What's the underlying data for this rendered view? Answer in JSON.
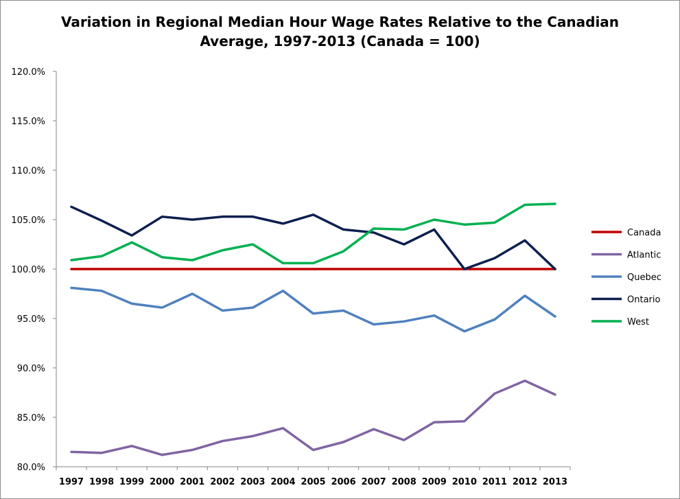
{
  "chart_data": {
    "type": "line",
    "title_line1": "Variation in Regional Median Hour Wage Rates Relative to the Canadian",
    "title_line2": "Average, 1997-2013 (Canada = 100)",
    "xlabel": "",
    "ylabel": "",
    "ylim": [
      80,
      120
    ],
    "ytick_step": 5,
    "grid": false,
    "legend_position": "right",
    "x": [
      "1997",
      "1998",
      "1999",
      "2000",
      "2001",
      "2002",
      "2003",
      "2004",
      "2005",
      "2006",
      "2007",
      "2008",
      "2009",
      "2010",
      "2011",
      "2012",
      "2013"
    ],
    "series": [
      {
        "name": "Canada",
        "color": "#c00000",
        "values": [
          100,
          100,
          100,
          100,
          100,
          100,
          100,
          100,
          100,
          100,
          100,
          100,
          100,
          100,
          100,
          100,
          100
        ]
      },
      {
        "name": "Atlantic",
        "color": "#8064a2",
        "values": [
          81.5,
          81.4,
          82.1,
          81.2,
          81.7,
          82.6,
          83.1,
          83.9,
          81.7,
          82.5,
          83.8,
          82.7,
          84.5,
          84.6,
          87.4,
          88.7,
          87.3
        ]
      },
      {
        "name": "Quebec",
        "color": "#4f81bd",
        "values": [
          98.1,
          97.8,
          96.5,
          96.1,
          97.5,
          95.8,
          96.1,
          97.8,
          95.5,
          95.8,
          94.4,
          94.7,
          95.3,
          93.7,
          94.9,
          97.3,
          95.2
        ]
      },
      {
        "name": "Ontario",
        "color": "#0d1f4f",
        "values": [
          106.3,
          104.9,
          103.4,
          105.3,
          105.0,
          105.3,
          105.3,
          104.6,
          105.5,
          104.0,
          103.7,
          102.5,
          104.0,
          100.0,
          101.1,
          102.9,
          100.0
        ]
      },
      {
        "name": "West",
        "color": "#00b050",
        "values": [
          100.9,
          101.3,
          102.7,
          101.2,
          100.9,
          101.9,
          102.5,
          100.6,
          100.6,
          101.8,
          104.1,
          104.0,
          105.0,
          104.5,
          104.7,
          106.5,
          106.6
        ]
      }
    ]
  }
}
